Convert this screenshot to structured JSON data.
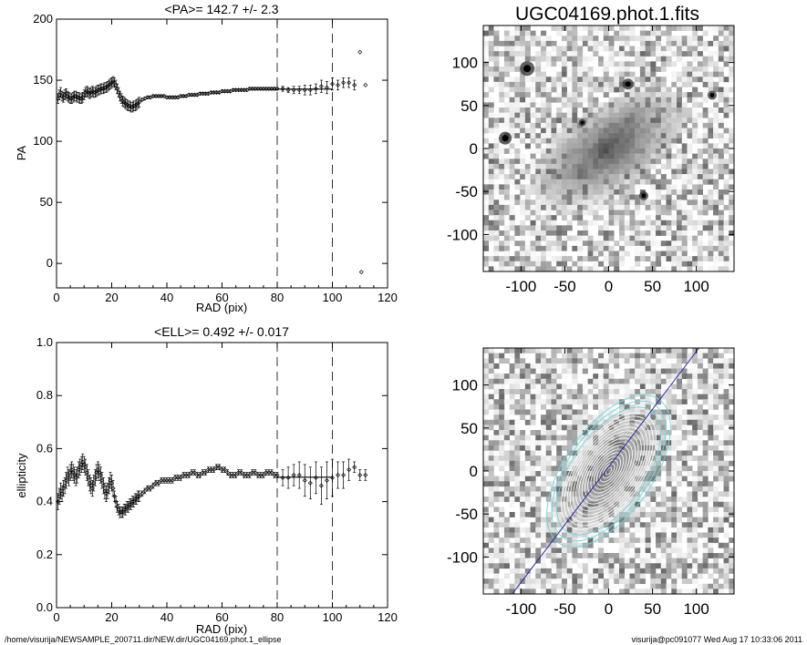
{
  "chart_data": [
    {
      "type": "scatter",
      "title": "<PA>= 142.7 +/-   2.3",
      "xlabel": "RAD (pix)",
      "ylabel": "PA",
      "xlim": [
        0,
        120
      ],
      "ylim": [
        -20,
        200
      ],
      "xticks": [
        "0",
        "20",
        "40",
        "60",
        "80",
        "100",
        "120"
      ],
      "yticks": [
        "0",
        "50",
        "100",
        "150",
        "200"
      ],
      "grid": false,
      "vlines": [
        80,
        100
      ],
      "mean_line": {
        "y": 142.7,
        "x_from": 80,
        "x_to": 100
      },
      "x": [
        0.5,
        1,
        1.5,
        2,
        2.5,
        3,
        3.5,
        4,
        4.5,
        5,
        5.5,
        6,
        6.5,
        7,
        7.5,
        8,
        8.5,
        9,
        9.5,
        10,
        10.5,
        11,
        11.5,
        12,
        12.5,
        13,
        13.5,
        14,
        14.5,
        15,
        15.5,
        16,
        16.5,
        17,
        17.5,
        18,
        18.5,
        19,
        19.5,
        20,
        20.5,
        21,
        21.5,
        22,
        22.5,
        23,
        23.5,
        24,
        24.5,
        25,
        25.5,
        26,
        26.5,
        27,
        27.5,
        28,
        28.5,
        29,
        29.5,
        30,
        31,
        32,
        33,
        34,
        35,
        36,
        37,
        38,
        39,
        40,
        41,
        42,
        43,
        44,
        45,
        46,
        47,
        48,
        49,
        50,
        51,
        52,
        53,
        54,
        55,
        56,
        57,
        58,
        59,
        60,
        61,
        62,
        63,
        64,
        65,
        66,
        67,
        68,
        69,
        70,
        71,
        72,
        73,
        74,
        75,
        76,
        77,
        78,
        79,
        80,
        82,
        84,
        86,
        88,
        90,
        92,
        94,
        96,
        98,
        100,
        102,
        104,
        106,
        108,
        110,
        110.5,
        112
      ],
      "values": [
        135,
        138,
        140,
        137,
        136,
        138,
        139,
        137,
        136,
        135,
        135,
        136,
        137,
        137,
        136,
        136,
        135,
        135,
        136,
        138,
        140,
        141,
        140,
        139,
        140,
        141,
        140,
        140,
        141,
        142,
        142,
        143,
        143,
        143,
        144,
        144,
        145,
        146,
        147,
        148,
        149,
        148,
        146,
        143,
        140,
        137,
        135,
        133,
        132,
        131,
        130,
        129,
        129,
        128,
        128,
        129,
        129,
        130,
        131,
        132,
        134,
        135,
        136,
        136,
        137,
        137,
        137,
        137,
        137,
        136,
        136,
        136,
        136,
        136,
        137,
        137,
        137,
        138,
        138,
        138,
        138,
        139,
        139,
        139,
        139,
        140,
        140,
        140,
        140,
        141,
        141,
        141,
        141,
        142,
        142,
        142,
        142,
        142,
        142,
        143,
        143,
        143,
        143,
        143,
        143,
        143,
        143,
        143,
        143,
        143,
        143,
        142,
        142,
        142,
        142,
        142,
        143,
        145,
        144,
        147,
        146,
        148,
        148,
        146,
        173,
        -7,
        146
      ],
      "errors": [
        4,
        4,
        4,
        4,
        4,
        4,
        4,
        4,
        4,
        4,
        4,
        4,
        4,
        4,
        4,
        4,
        4,
        4,
        4,
        4,
        4,
        4,
        4,
        4,
        4,
        4,
        4,
        4,
        4,
        4,
        4,
        4,
        4,
        4,
        4,
        4,
        4,
        4,
        4,
        4,
        4,
        4,
        4,
        4,
        4,
        4,
        4,
        4,
        4,
        4,
        4,
        4,
        4,
        4,
        4,
        4,
        4,
        4,
        4,
        4,
        1,
        1,
        1,
        1,
        1,
        1,
        1,
        1,
        1,
        1,
        1,
        1,
        1,
        1,
        1,
        1,
        1,
        1,
        1,
        1,
        1,
        1,
        1,
        1,
        1,
        1,
        1,
        1,
        1,
        1,
        1,
        1,
        1,
        1,
        1,
        1,
        1,
        1,
        1,
        1,
        1,
        1,
        1,
        1,
        1,
        1,
        1,
        1,
        1,
        1,
        2,
        2,
        3,
        3,
        4,
        4,
        4,
        5,
        5,
        5,
        4,
        4,
        4,
        4,
        0,
        0,
        0
      ]
    },
    {
      "type": "scatter",
      "title": "<ELL>= 0.492 +/-  0.017",
      "xlabel": "RAD (pix)",
      "ylabel": "ellipticity",
      "xlim": [
        0,
        120
      ],
      "ylim": [
        0.0,
        1.0
      ],
      "xticks": [
        "0",
        "20",
        "40",
        "60",
        "80",
        "100",
        "120"
      ],
      "yticks": [
        "0.0",
        "0.2",
        "0.4",
        "0.6",
        "0.8",
        "1.0"
      ],
      "grid": false,
      "vlines": [
        80,
        100
      ],
      "mean_line": {
        "y": 0.492,
        "x_from": 80,
        "x_to": 100
      },
      "x": [
        0.5,
        1,
        1.5,
        2,
        2.5,
        3,
        3.5,
        4,
        4.5,
        5,
        5.5,
        6,
        6.5,
        7,
        7.5,
        8,
        8.5,
        9,
        9.5,
        10,
        10.5,
        11,
        11.5,
        12,
        12.5,
        13,
        13.5,
        14,
        14.5,
        15,
        15.5,
        16,
        16.5,
        17,
        17.5,
        18,
        18.5,
        19,
        19.5,
        20,
        20.5,
        21,
        21.5,
        22,
        22.5,
        23,
        23.5,
        24,
        24.5,
        25,
        25.5,
        26,
        26.5,
        27,
        27.5,
        28,
        28.5,
        29,
        29.5,
        30,
        31,
        32,
        33,
        34,
        35,
        36,
        37,
        38,
        39,
        40,
        41,
        42,
        43,
        44,
        45,
        46,
        47,
        48,
        49,
        50,
        51,
        52,
        53,
        54,
        55,
        56,
        57,
        58,
        59,
        60,
        61,
        62,
        63,
        64,
        65,
        66,
        67,
        68,
        69,
        70,
        71,
        72,
        73,
        74,
        75,
        76,
        77,
        78,
        79,
        80,
        82,
        84,
        86,
        88,
        90,
        92,
        94,
        96,
        98,
        100,
        102,
        104,
        106,
        108,
        110,
        112
      ],
      "values": [
        0.4,
        0.42,
        0.44,
        0.43,
        0.45,
        0.46,
        0.48,
        0.5,
        0.49,
        0.51,
        0.52,
        0.51,
        0.5,
        0.49,
        0.5,
        0.52,
        0.53,
        0.54,
        0.55,
        0.54,
        0.53,
        0.51,
        0.49,
        0.47,
        0.46,
        0.45,
        0.47,
        0.49,
        0.51,
        0.52,
        0.51,
        0.5,
        0.48,
        0.46,
        0.44,
        0.43,
        0.44,
        0.46,
        0.48,
        0.47,
        0.45,
        0.42,
        0.4,
        0.38,
        0.37,
        0.36,
        0.36,
        0.36,
        0.37,
        0.37,
        0.38,
        0.38,
        0.39,
        0.39,
        0.4,
        0.4,
        0.41,
        0.41,
        0.42,
        0.42,
        0.43,
        0.44,
        0.45,
        0.45,
        0.46,
        0.47,
        0.47,
        0.48,
        0.48,
        0.48,
        0.48,
        0.48,
        0.49,
        0.49,
        0.49,
        0.5,
        0.5,
        0.5,
        0.51,
        0.51,
        0.5,
        0.5,
        0.51,
        0.51,
        0.52,
        0.52,
        0.52,
        0.53,
        0.53,
        0.52,
        0.52,
        0.51,
        0.5,
        0.5,
        0.5,
        0.51,
        0.51,
        0.5,
        0.5,
        0.5,
        0.51,
        0.51,
        0.5,
        0.5,
        0.5,
        0.51,
        0.51,
        0.51,
        0.5,
        0.5,
        0.49,
        0.49,
        0.5,
        0.5,
        0.48,
        0.47,
        0.49,
        0.46,
        0.48,
        0.49,
        0.5,
        0.5,
        0.52,
        0.53,
        0.5,
        0.5
      ],
      "errors": [
        0.03,
        0.03,
        0.03,
        0.03,
        0.03,
        0.03,
        0.03,
        0.03,
        0.03,
        0.03,
        0.03,
        0.03,
        0.03,
        0.03,
        0.03,
        0.03,
        0.03,
        0.03,
        0.03,
        0.03,
        0.03,
        0.03,
        0.03,
        0.03,
        0.03,
        0.03,
        0.03,
        0.03,
        0.03,
        0.03,
        0.03,
        0.03,
        0.03,
        0.03,
        0.03,
        0.03,
        0.03,
        0.03,
        0.03,
        0.03,
        0.03,
        0.02,
        0.02,
        0.02,
        0.02,
        0.02,
        0.02,
        0.02,
        0.02,
        0.02,
        0.02,
        0.02,
        0.02,
        0.02,
        0.02,
        0.02,
        0.02,
        0.02,
        0.02,
        0.02,
        0.01,
        0.01,
        0.01,
        0.01,
        0.01,
        0.01,
        0.01,
        0.01,
        0.01,
        0.01,
        0.01,
        0.01,
        0.01,
        0.01,
        0.01,
        0.01,
        0.01,
        0.01,
        0.01,
        0.01,
        0.01,
        0.01,
        0.01,
        0.01,
        0.01,
        0.01,
        0.01,
        0.01,
        0.01,
        0.01,
        0.01,
        0.01,
        0.01,
        0.01,
        0.01,
        0.01,
        0.01,
        0.01,
        0.01,
        0.01,
        0.01,
        0.01,
        0.01,
        0.01,
        0.01,
        0.01,
        0.01,
        0.01,
        0.01,
        0.01,
        0.03,
        0.04,
        0.04,
        0.05,
        0.06,
        0.06,
        0.06,
        0.07,
        0.07,
        0.07,
        0.05,
        0.05,
        0.04,
        0.02,
        0.02,
        0.02
      ]
    },
    {
      "type": "heatmap",
      "title": "UGC04169.phot.1.fits",
      "xticks": [
        "-100",
        "-50",
        "0",
        "50",
        "100"
      ],
      "yticks": [
        "100",
        "50",
        "0",
        "-50",
        "-100"
      ],
      "xlim": [
        -143,
        143
      ],
      "ylim": [
        -143,
        143
      ]
    },
    {
      "type": "heatmap",
      "title": "",
      "xticks": [
        "-100",
        "-50",
        "0",
        "50",
        "100"
      ],
      "yticks": [
        "100",
        "50",
        "0",
        "-50",
        "-100"
      ],
      "xlim": [
        -143,
        143
      ],
      "ylim": [
        -143,
        143
      ],
      "overlay": "ellipse isophote contours with major-axis line",
      "contour_colors": {
        "inner": "#ffffff",
        "outer": "#6fd6dc",
        "axis_line": "#2a2aa0"
      }
    }
  ],
  "footer": {
    "left": "/home/visurija/NEWSAMPLE_200711.dir/NEW.dir/UGC04169.phot.1_ellipse",
    "right": "visurija@pc091077  Wed Aug 17 10:33:06 2011"
  }
}
